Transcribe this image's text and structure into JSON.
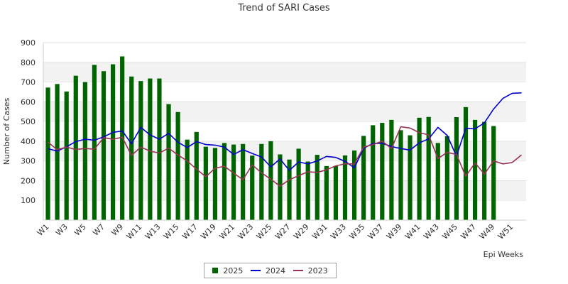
{
  "chart_data": {
    "type": "bar",
    "title": "Trend of SARI Cases",
    "xlabel": "Epi Weeks",
    "ylabel": "Number of Cases",
    "ylim": [
      0,
      900
    ],
    "yticks": [
      100,
      200,
      300,
      400,
      500,
      600,
      700,
      800,
      900
    ],
    "grid": "horizontal alternating bands",
    "legend_position": "bottom-center",
    "categories": [
      "W1",
      "W2",
      "W3",
      "W4",
      "W5",
      "W6",
      "W7",
      "W8",
      "W9",
      "W10",
      "W11",
      "W12",
      "W13",
      "W14",
      "W15",
      "W16",
      "W17",
      "W18",
      "W19",
      "W20",
      "W21",
      "W22",
      "W23",
      "W24",
      "W25",
      "W26",
      "W27",
      "W28",
      "W29",
      "W30",
      "W31",
      "W32",
      "W33",
      "W34",
      "W35",
      "W36",
      "W37",
      "W38",
      "W39",
      "W40",
      "W41",
      "W42",
      "W43",
      "W44",
      "W45",
      "W46",
      "W47",
      "W48",
      "W49",
      "W50",
      "W51",
      "W52"
    ],
    "x_tick_labels": [
      "W1",
      "W3",
      "W5",
      "W7",
      "W9",
      "W11",
      "W13",
      "W15",
      "W17",
      "W19",
      "W21",
      "W23",
      "W25",
      "W27",
      "W29",
      "W31",
      "W33",
      "W35",
      "W37",
      "W39",
      "W41",
      "W43",
      "W45",
      "W47",
      "W49",
      "W51"
    ],
    "series": [
      {
        "name": "2025",
        "kind": "bar",
        "color": "#006400",
        "values": [
          672,
          690,
          652,
          732,
          700,
          787,
          755,
          790,
          830,
          728,
          705,
          718,
          718,
          588,
          548,
          408,
          447,
          372,
          366,
          391,
          383,
          386,
          327,
          386,
          400,
          333,
          307,
          362,
          297,
          331,
          274,
          274,
          328,
          353,
          427,
          481,
          493,
          508,
          456,
          430,
          519,
          523,
          391,
          426,
          522,
          573,
          508,
          498,
          477,
          null,
          null,
          null
        ]
      },
      {
        "name": "2024",
        "kind": "line",
        "color": "#0000cc",
        "values": [
          362,
          350,
          372,
          398,
          410,
          405,
          422,
          445,
          452,
          387,
          470,
          432,
          410,
          440,
          395,
          368,
          398,
          383,
          380,
          370,
          333,
          357,
          338,
          320,
          270,
          310,
          252,
          295,
          285,
          300,
          323,
          318,
          298,
          265,
          365,
          388,
          390,
          373,
          363,
          355,
          392,
          412,
          470,
          430,
          325,
          465,
          463,
          493,
          563,
          617,
          643,
          645
        ]
      },
      {
        "name": "2023",
        "kind": "line",
        "color": "#993355",
        "values": [
          395,
          357,
          370,
          358,
          363,
          360,
          418,
          410,
          420,
          328,
          370,
          350,
          340,
          365,
          330,
          300,
          258,
          220,
          263,
          273,
          238,
          205,
          280,
          240,
          207,
          172,
          205,
          225,
          245,
          242,
          255,
          275,
          285,
          285,
          370,
          383,
          400,
          363,
          473,
          467,
          443,
          432,
          312,
          343,
          333,
          222,
          290,
          233,
          300,
          285,
          292,
          330
        ]
      }
    ]
  }
}
